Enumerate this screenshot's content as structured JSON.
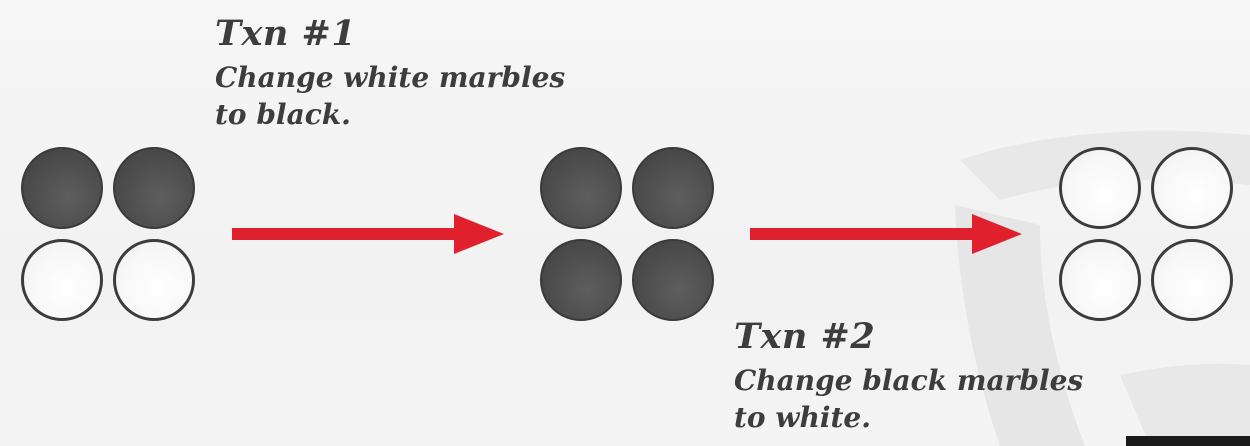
{
  "txn1": {
    "title": "Txn #1",
    "line1": "Change white marbles",
    "line2": "to black."
  },
  "txn2": {
    "title": "Txn #2",
    "line1": "Change black marbles",
    "line2": "to white."
  },
  "marble_sets": [
    {
      "name": "initial-state",
      "marbles": [
        "black",
        "black",
        "white",
        "white"
      ]
    },
    {
      "name": "after-txn1",
      "marbles": [
        "black",
        "black",
        "black",
        "black"
      ]
    },
    {
      "name": "after-txn2",
      "marbles": [
        "white",
        "white",
        "white",
        "white"
      ]
    }
  ],
  "colors": {
    "arrow": "#e0202c",
    "black_marble": "#4a4a4a",
    "white_marble": "#ffffff",
    "text": "#3d3d3d"
  }
}
